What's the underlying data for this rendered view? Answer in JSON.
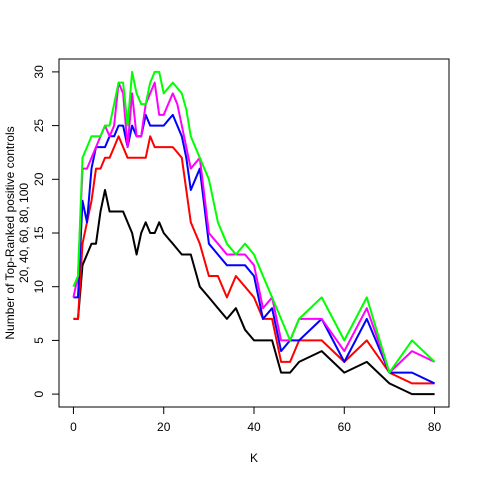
{
  "chart_data": {
    "type": "line",
    "xlabel": "K",
    "ylabel": "Number of Top-Ranked positive controls",
    "ylabel2": "20, 40, 60, 80, 100",
    "xlim": [
      0,
      80
    ],
    "ylim": [
      0,
      30
    ],
    "xticks": [
      0,
      20,
      40,
      60,
      80
    ],
    "yticks": [
      0,
      5,
      10,
      15,
      20,
      25,
      30
    ],
    "grid": false,
    "x": [
      0,
      1,
      2,
      3,
      4,
      5,
      6,
      7,
      8,
      9,
      10,
      11,
      12,
      13,
      14,
      15,
      16,
      17,
      18,
      19,
      20,
      21,
      22,
      23,
      24,
      25,
      26,
      27,
      28,
      30,
      32,
      34,
      36,
      38,
      40,
      42,
      44,
      46,
      48,
      50,
      55,
      60,
      65,
      70,
      75,
      80
    ],
    "series": [
      {
        "color": "#000000",
        "values": [
          7,
          7,
          12,
          13,
          14,
          14,
          17,
          19,
          17,
          17,
          17,
          17,
          16,
          15,
          13,
          15,
          16,
          15,
          15,
          16,
          15,
          14.5,
          14,
          13.5,
          13,
          13,
          13,
          11.5,
          10,
          9,
          8,
          7,
          8,
          6,
          5,
          5,
          5,
          2,
          2,
          3,
          4,
          2,
          3,
          1,
          0,
          0
        ]
      },
      {
        "color": "#ff0000",
        "values": [
          7,
          7,
          14,
          16,
          18,
          21,
          21,
          22,
          22,
          23,
          24,
          23,
          22,
          22,
          22,
          22,
          22,
          24,
          23,
          23,
          23,
          23,
          23,
          22.5,
          22,
          19,
          16,
          15,
          14,
          11,
          11,
          9,
          11,
          10,
          9,
          7,
          7,
          3,
          3,
          5,
          5,
          3,
          5,
          2,
          1,
          1
        ]
      },
      {
        "color": "#0000ff",
        "values": [
          9,
          9,
          18,
          16,
          21,
          23,
          23,
          23,
          24,
          24,
          25,
          25,
          23,
          25,
          24,
          24,
          26,
          25,
          25,
          25,
          25,
          25.5,
          26,
          25,
          24,
          22,
          19,
          20,
          21,
          14,
          13,
          12,
          12,
          12,
          11,
          7,
          8,
          4,
          5,
          5,
          7,
          3,
          7,
          2,
          2,
          1
        ]
      },
      {
        "color": "#ff00ff",
        "values": [
          9,
          11,
          21,
          21,
          22,
          23,
          24,
          25,
          24,
          25,
          29,
          28,
          23,
          28,
          24,
          24,
          27,
          28,
          29,
          26,
          26,
          27,
          28,
          27,
          25,
          23,
          21,
          21.5,
          22,
          15,
          14,
          13,
          13,
          13,
          12,
          8,
          9,
          5,
          5,
          7,
          7,
          4,
          8,
          2,
          4,
          3
        ]
      },
      {
        "color": "#00ff00",
        "values": [
          10,
          11,
          22,
          23,
          24,
          24,
          24,
          25,
          25,
          27,
          29,
          29,
          25,
          30,
          28,
          27,
          27,
          29,
          30,
          30,
          28,
          28.5,
          29,
          28.5,
          28,
          26.5,
          24,
          23,
          22,
          20,
          16,
          14,
          13,
          14,
          13,
          11,
          9,
          7,
          5,
          7,
          9,
          5,
          9,
          2,
          5,
          3
        ]
      }
    ]
  }
}
